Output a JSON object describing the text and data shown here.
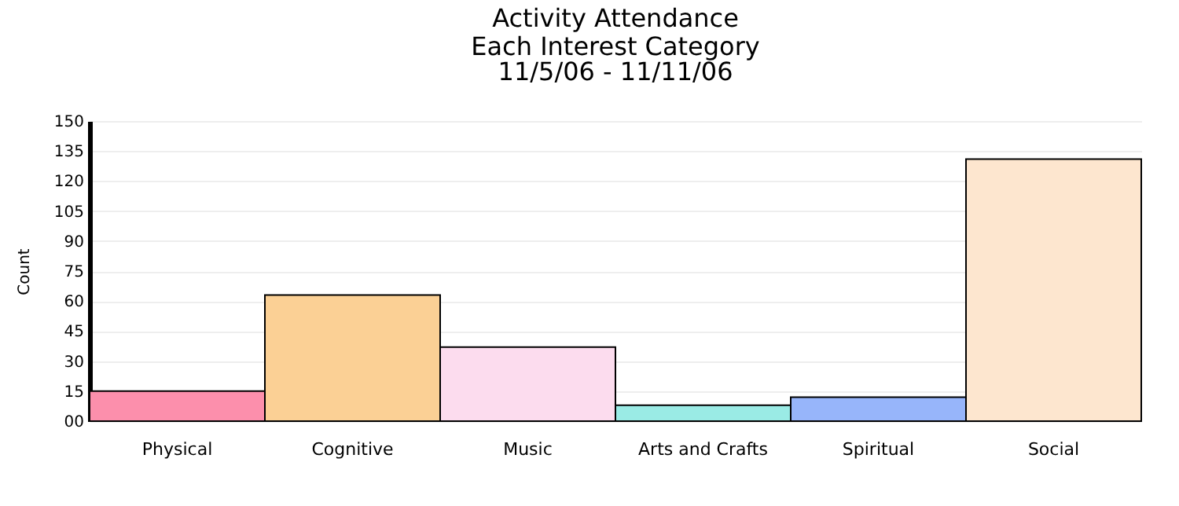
{
  "chart_data": {
    "type": "bar",
    "title": "Activity Attendance\nEach Interest Category",
    "subtitle": "11/5/06 - 11/11/06",
    "ylabel": "Count",
    "categories": [
      "Physical",
      "Cognitive",
      "Music",
      "Arts and Crafts",
      "Spiritual",
      "Social"
    ],
    "values": [
      15,
      63,
      37,
      8,
      12,
      131
    ],
    "colors": [
      "#fc8fac",
      "#fbd095",
      "#fcdcee",
      "#9aebe5",
      "#97b5fa",
      "#fde6cf"
    ],
    "ylim": [
      0,
      150
    ],
    "yticks": [
      {
        "value": 0,
        "label": "00"
      },
      15,
      30,
      45,
      60,
      75,
      90,
      105,
      120,
      135,
      150
    ],
    "grid": "y",
    "legend": false
  }
}
